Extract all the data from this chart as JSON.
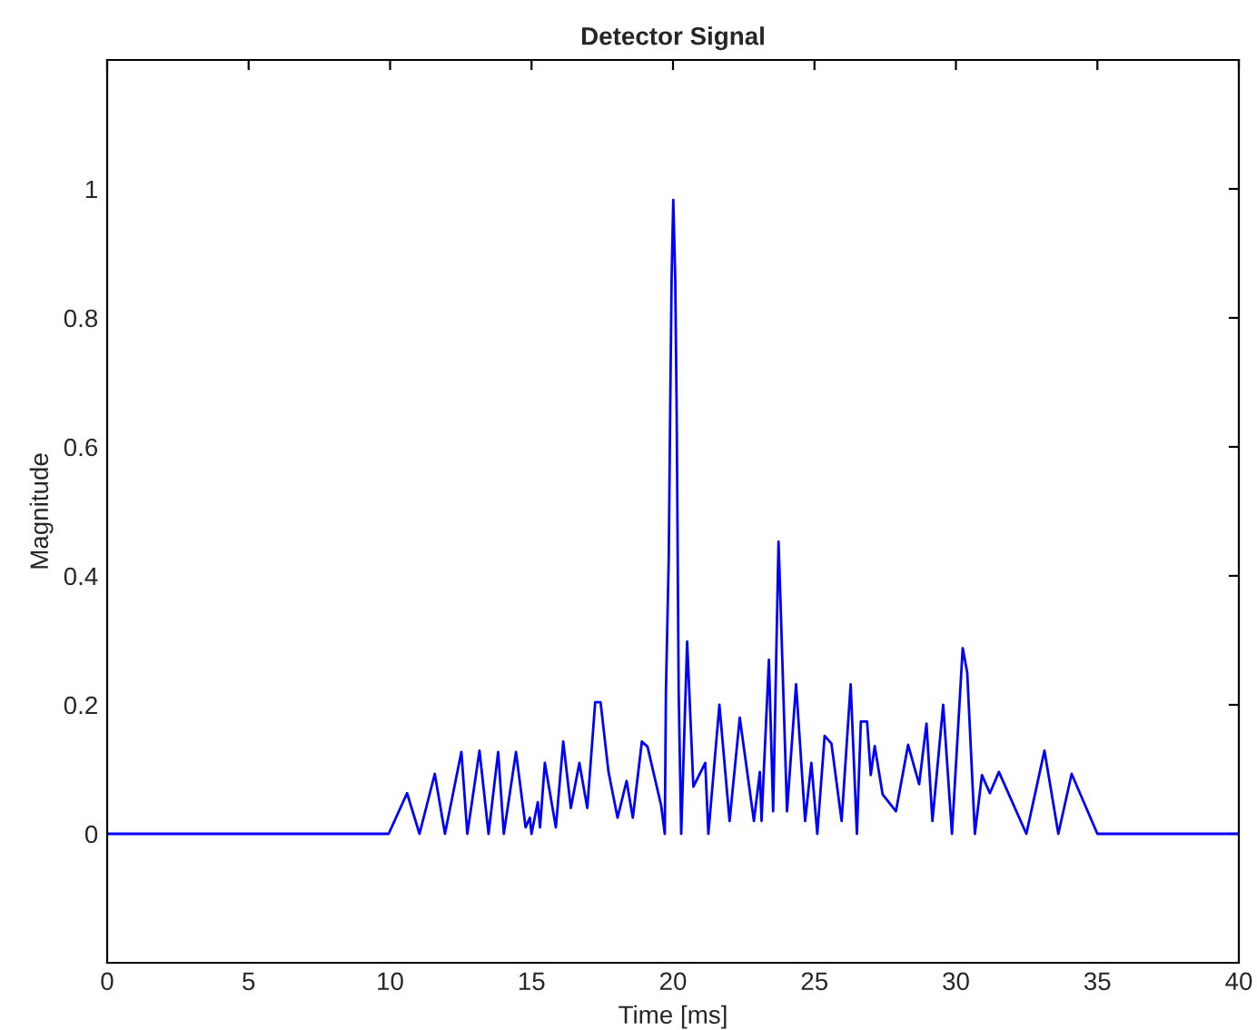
{
  "chart_data": {
    "type": "line",
    "title": "Detector Signal",
    "xlabel": "Time [ms]",
    "ylabel": "Magnitude",
    "xlim": [
      0,
      40
    ],
    "ylim": [
      -0.2,
      1.2
    ],
    "xticks": [
      0,
      5,
      10,
      15,
      20,
      25,
      30,
      35,
      40
    ],
    "yticks": [
      0,
      0.2,
      0.4,
      0.6,
      0.8,
      1
    ],
    "grid": false,
    "series": [
      {
        "color": "#0000ff",
        "x": [
          0,
          9.95,
          10.6,
          11.04,
          11.58,
          11.94,
          12.52,
          12.73,
          13.16,
          13.48,
          13.82,
          14.02,
          14.45,
          14.79,
          14.94,
          15.0,
          15.22,
          15.3,
          15.47,
          15.86,
          16.12,
          16.39,
          16.69,
          16.97,
          17.25,
          17.44,
          17.72,
          18.04,
          18.36,
          18.58,
          18.9,
          19.1,
          19.58,
          19.71,
          19.75,
          19.85,
          19.9,
          19.95,
          20.01,
          20.08,
          20.13,
          20.2,
          20.29,
          20.5,
          20.72,
          21.14,
          21.25,
          21.64,
          22.0,
          22.36,
          22.86,
          23.07,
          23.13,
          23.39,
          23.54,
          23.73,
          23.8,
          24.03,
          24.35,
          24.67,
          24.89,
          25.1,
          25.36,
          25.6,
          25.96,
          26.28,
          26.5,
          26.64,
          26.86,
          26.99,
          27.13,
          27.41,
          27.88,
          28.31,
          28.7,
          28.96,
          29.17,
          29.55,
          29.86,
          30.24,
          30.4,
          30.67,
          30.92,
          31.2,
          31.52,
          32.49,
          33.13,
          33.62,
          34.09,
          35.0,
          40
        ],
        "values": [
          0,
          0,
          0.063,
          0,
          0.093,
          0,
          0.127,
          0,
          0.129,
          0,
          0.127,
          0,
          0.127,
          0.01,
          0.025,
          0,
          0.049,
          0.01,
          0.11,
          0.01,
          0.143,
          0.04,
          0.11,
          0.04,
          0.204,
          0.204,
          0.096,
          0.025,
          0.082,
          0.025,
          0.143,
          0.135,
          0.044,
          0,
          0.22,
          0.43,
          0.654,
          0.86,
          0.983,
          0.86,
          0.654,
          0.22,
          0,
          0.298,
          0.073,
          0.11,
          0,
          0.2,
          0.02,
          0.18,
          0.02,
          0.096,
          0.02,
          0.27,
          0.035,
          0.453,
          0.36,
          0.035,
          0.232,
          0.02,
          0.11,
          0,
          0.152,
          0.14,
          0.02,
          0.232,
          0,
          0.174,
          0.174,
          0.091,
          0.136,
          0.061,
          0.035,
          0.138,
          0.077,
          0.171,
          0.02,
          0.2,
          0,
          0.288,
          0.25,
          0,
          0.091,
          0.063,
          0.096,
          0,
          0.129,
          0,
          0.093,
          0,
          0
        ]
      }
    ]
  }
}
